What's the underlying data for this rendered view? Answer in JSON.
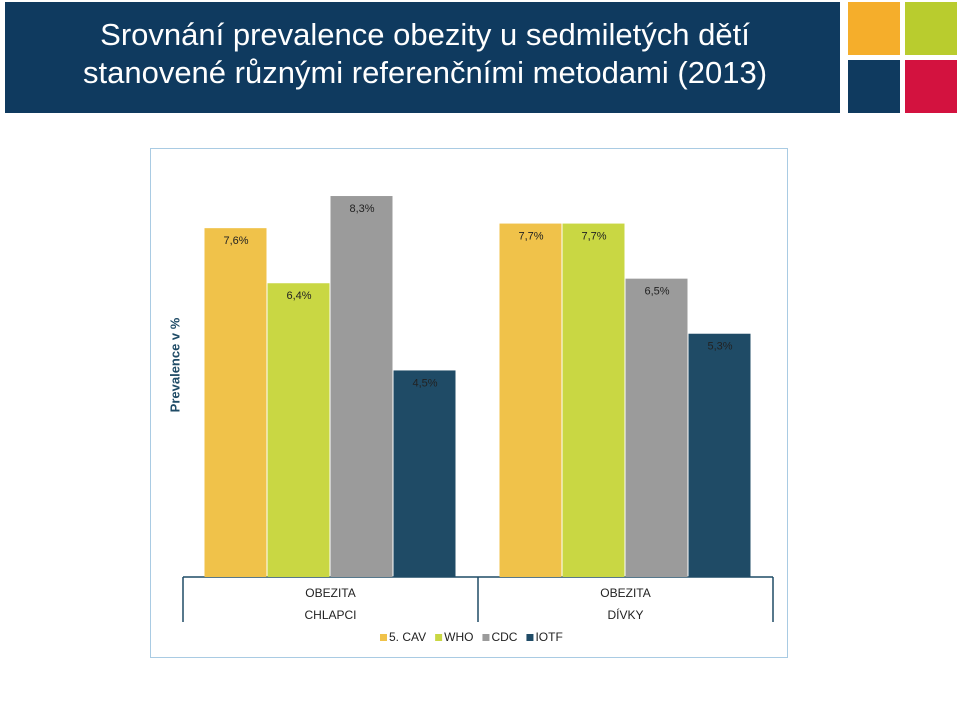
{
  "chart_data": {
    "type": "bar",
    "title": "Srovnání prevalence obezity u sedmiletých dětí stanovené různými referenčními metodami (2013)",
    "y_label": "Prevalence v %",
    "categories": [
      "OBEZITA\nCHLAPCI",
      "OBEZITA\nDÍVKY"
    ],
    "ylim": [
      0,
      10
    ],
    "legend": "bottom",
    "series": [
      {
        "name": "5. CAV",
        "color": "#f0c24a",
        "values": [
          7.6,
          7.7
        ],
        "value_labels": [
          "7,6%",
          "7,7%"
        ]
      },
      {
        "name": "WHO",
        "color": "#c9d743",
        "values": [
          6.4,
          7.7
        ],
        "value_labels": [
          "6,4%",
          "7,7%"
        ]
      },
      {
        "name": "CDC",
        "color": "#9b9b9b",
        "values": [
          8.3,
          6.5
        ],
        "value_labels": [
          "8,3%",
          "6,5%"
        ]
      },
      {
        "name": "IOTF",
        "color": "#1f4b66",
        "values": [
          4.5,
          5.3
        ],
        "value_labels": [
          "4,5%",
          "5,3%"
        ]
      }
    ]
  }
}
